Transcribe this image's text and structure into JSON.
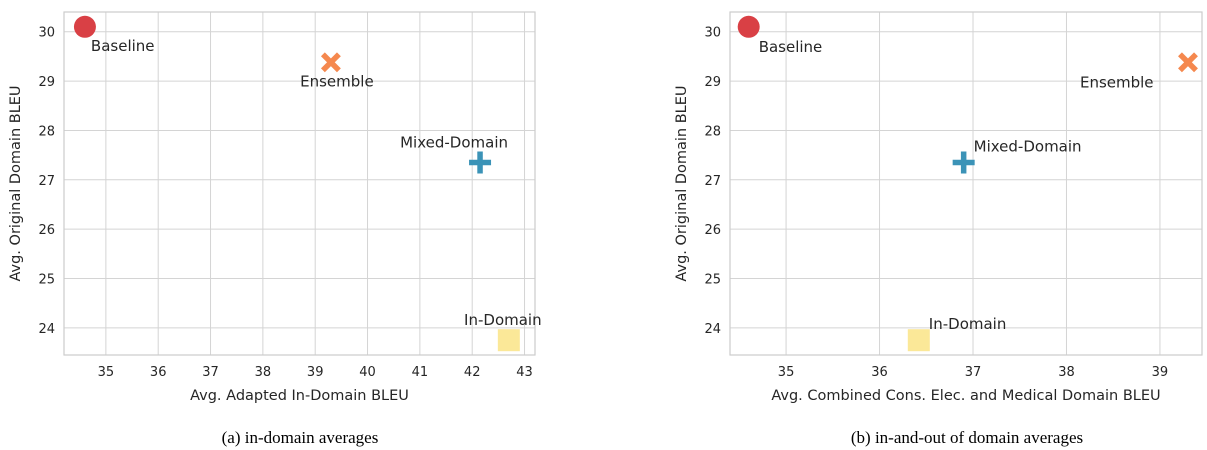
{
  "chart_data": [
    {
      "type": "scatter",
      "caption": "(a) in-domain averages",
      "xlabel": "Avg. Adapted In-Domain BLEU",
      "ylabel": "Avg. Original Domain BLEU",
      "xlim": [
        34.2,
        43.2
      ],
      "ylim": [
        23.45,
        30.4
      ],
      "xticks": [
        35,
        36,
        37,
        38,
        39,
        40,
        41,
        42,
        43
      ],
      "yticks": [
        24,
        25,
        26,
        27,
        28,
        29,
        30
      ],
      "grid": true,
      "points": [
        {
          "label": "Baseline",
          "x": 34.6,
          "y": 30.1,
          "marker": "circle",
          "color": "#d94045"
        },
        {
          "label": "Ensemble",
          "x": 39.3,
          "y": 29.38,
          "marker": "x",
          "color": "#f5884e"
        },
        {
          "label": "Mixed-Domain",
          "x": 42.15,
          "y": 27.35,
          "marker": "plus",
          "color": "#3b93b7"
        },
        {
          "label": "In-Domain",
          "x": 42.7,
          "y": 23.75,
          "marker": "square",
          "color": "#fbe898"
        }
      ]
    },
    {
      "type": "scatter",
      "caption": "(b) in-and-out of domain averages",
      "xlabel": "Avg. Combined Cons. Elec. and Medical Domain BLEU",
      "ylabel": "Avg. Original Domain BLEU",
      "xlim": [
        34.4,
        39.45
      ],
      "ylim": [
        23.45,
        30.4
      ],
      "xticks": [
        35,
        36,
        37,
        38,
        39
      ],
      "yticks": [
        24,
        25,
        26,
        27,
        28,
        29,
        30
      ],
      "grid": true,
      "points": [
        {
          "label": "Baseline",
          "x": 34.6,
          "y": 30.1,
          "marker": "circle",
          "color": "#d94045"
        },
        {
          "label": "Ensemble",
          "x": 39.3,
          "y": 29.38,
          "marker": "x",
          "color": "#f5884e"
        },
        {
          "label": "Mixed-Domain",
          "x": 36.9,
          "y": 27.35,
          "marker": "plus",
          "color": "#3b93b7"
        },
        {
          "label": "In-Domain",
          "x": 36.42,
          "y": 23.75,
          "marker": "square",
          "color": "#fbe898"
        }
      ]
    }
  ]
}
